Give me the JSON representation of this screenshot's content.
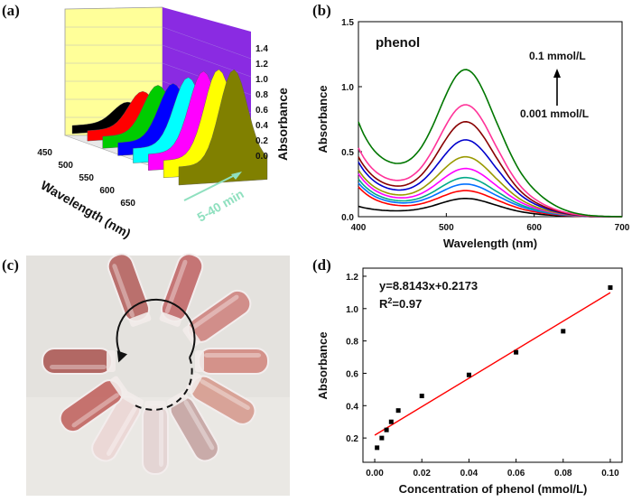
{
  "panels": {
    "a": "(a)",
    "b": "(b)",
    "c": "(c)",
    "d": "(d)"
  },
  "chart_data": [
    {
      "panel": "a",
      "type": "area",
      "xlabel": "Wavelength (nm)",
      "zlabel": "Absorbance",
      "x_ticks": [
        "450",
        "500",
        "550",
        "600",
        "650"
      ],
      "z_ticks": [
        "0.0",
        "0.2",
        "0.4",
        "0.6",
        "0.8",
        "1.0",
        "1.2",
        "1.4"
      ],
      "time_annotation": "5-40 min",
      "series_colors": [
        "#000000",
        "#ff0000",
        "#00cc00",
        "#0000ff",
        "#00ffff",
        "#ff00ff",
        "#ffff00",
        "#808000"
      ],
      "peak_values": [
        0.25,
        0.45,
        0.6,
        0.7,
        0.85,
        1.0,
        1.1,
        1.18
      ]
    },
    {
      "panel": "b",
      "type": "line",
      "xlabel": "Wavelength (nm)",
      "ylabel": "Absorbance",
      "xlim": [
        400,
        700
      ],
      "ylim": [
        0,
        1.5
      ],
      "x_ticks": [
        "400",
        "500",
        "600",
        "700"
      ],
      "y_ticks": [
        "0.0",
        "0.5",
        "1.0",
        "1.5"
      ],
      "annotation_title": "phenol",
      "annotation_high": "0.1 mmol/L",
      "annotation_low": "0.001 mmol/L",
      "peak_x": 522,
      "series": [
        {
          "color": "#000000",
          "start": 0.08,
          "min": 0.06,
          "peak": 0.14
        },
        {
          "color": "#ff0000",
          "start": 0.23,
          "min": 0.1,
          "peak": 0.2
        },
        {
          "color": "#0070ff",
          "start": 0.26,
          "min": 0.13,
          "peak": 0.25
        },
        {
          "color": "#00aa88",
          "start": 0.29,
          "min": 0.15,
          "peak": 0.3
        },
        {
          "color": "#ff00ff",
          "start": 0.33,
          "min": 0.18,
          "peak": 0.37
        },
        {
          "color": "#999900",
          "start": 0.36,
          "min": 0.21,
          "peak": 0.46
        },
        {
          "color": "#0000cc",
          "start": 0.42,
          "min": 0.26,
          "peak": 0.59
        },
        {
          "color": "#880000",
          "start": 0.46,
          "min": 0.3,
          "peak": 0.73
        },
        {
          "color": "#ff3399",
          "start": 0.53,
          "min": 0.36,
          "peak": 0.86
        },
        {
          "color": "#007700",
          "start": 0.73,
          "min": 0.55,
          "peak": 1.13
        }
      ]
    },
    {
      "panel": "d",
      "type": "scatter",
      "xlabel": "Concentration of phenol (mmol/L)",
      "ylabel": "Absorbance",
      "xlim": [
        -0.005,
        0.105
      ],
      "ylim": [
        0.05,
        1.25
      ],
      "x_ticks": [
        "0.00",
        "0.02",
        "0.04",
        "0.06",
        "0.08",
        "0.10"
      ],
      "y_ticks": [
        "0.2",
        "0.4",
        "0.6",
        "0.8",
        "1.0",
        "1.2"
      ],
      "equation": "y=8.8143x+0.2173",
      "r2_label": "R",
      "r2_sup": "2",
      "r2_value": "=0.97",
      "fit": {
        "slope": 8.8143,
        "intercept": 0.2173,
        "color": "#ff0000"
      },
      "x": [
        0.001,
        0.003,
        0.005,
        0.007,
        0.01,
        0.02,
        0.04,
        0.06,
        0.08,
        0.1
      ],
      "y": [
        0.14,
        0.2,
        0.25,
        0.3,
        0.37,
        0.46,
        0.59,
        0.73,
        0.86,
        1.13
      ]
    }
  ],
  "photo": {
    "tube_count": 10,
    "tube_colors": [
      "#b86a68",
      "#c47070",
      "#d08a86",
      "#d48e86",
      "#d8a094",
      "#c8a8a6",
      "#e4d4d4",
      "#ecd8d6",
      "#c46c68",
      "#b0625e"
    ],
    "background": "#e4e2de"
  }
}
